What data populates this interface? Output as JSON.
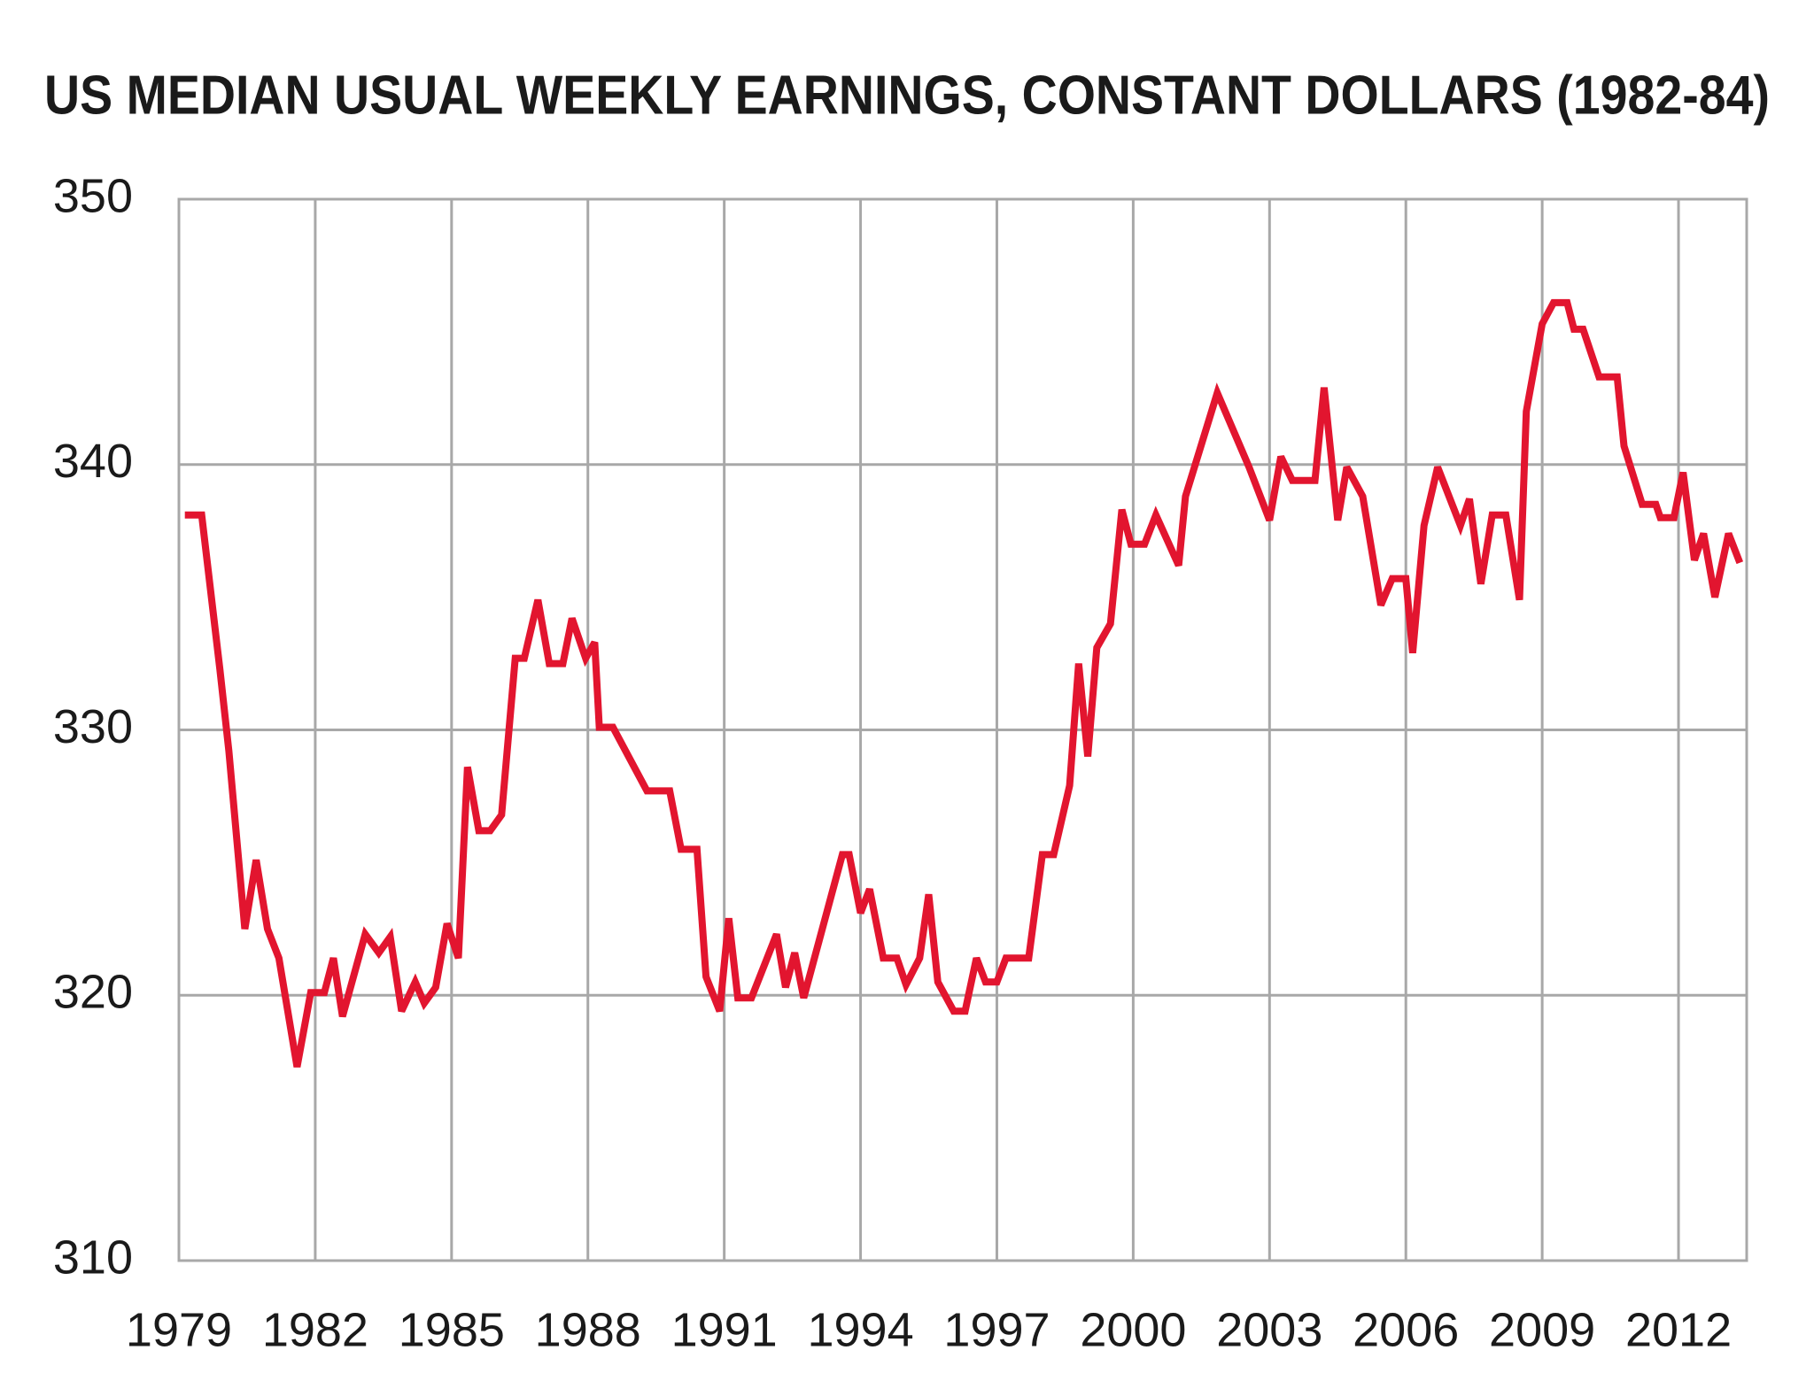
{
  "chart_data": {
    "type": "line",
    "title": "US MEDIAN USUAL WEEKLY EARNINGS, CONSTANT DOLLARS (1982-84)",
    "color": "#e2152f",
    "grid": true,
    "xlim": [
      1979,
      2013.5
    ],
    "ylim": [
      310,
      350
    ],
    "xticks": [
      1979,
      1982,
      1985,
      1988,
      1991,
      1994,
      1997,
      2000,
      2003,
      2006,
      2009,
      2012
    ],
    "yticks": [
      310,
      320,
      330,
      340,
      350
    ],
    "x": [
      1979.13,
      1979.5,
      1979.9,
      1980.1,
      1980.45,
      1980.7,
      1980.95,
      1981.2,
      1981.6,
      1981.9,
      1982.2,
      1982.4,
      1982.6,
      1983.1,
      1983.4,
      1983.65,
      1983.9,
      1984.2,
      1984.4,
      1984.65,
      1984.9,
      1985.15,
      1985.35,
      1985.6,
      1985.85,
      1986.1,
      1986.4,
      1986.6,
      1986.9,
      1987.15,
      1987.45,
      1987.65,
      1987.95,
      1988.15,
      1988.25,
      1988.55,
      1989.3,
      1989.8,
      1990.05,
      1990.4,
      1990.6,
      1990.9,
      1991.1,
      1991.3,
      1991.6,
      1992.15,
      1992.35,
      1992.55,
      1992.75,
      1993.6,
      1993.75,
      1994.0,
      1994.2,
      1994.5,
      1994.8,
      1995.0,
      1995.3,
      1995.5,
      1995.7,
      1996.05,
      1996.3,
      1996.55,
      1996.75,
      1997.0,
      1997.2,
      1997.7,
      1998.0,
      1998.25,
      1998.6,
      1998.8,
      1999.0,
      1999.2,
      1999.5,
      1999.75,
      1999.95,
      2000.25,
      2000.5,
      2001.0,
      2001.15,
      2001.85,
      2002.55,
      2003.0,
      2003.25,
      2003.5,
      2004.0,
      2004.2,
      2004.5,
      2004.7,
      2005.05,
      2005.45,
      2005.7,
      2006.0,
      2006.15,
      2006.4,
      2006.7,
      2007.2,
      2007.4,
      2007.65,
      2007.9,
      2008.2,
      2008.5,
      2008.65,
      2009.0,
      2009.25,
      2009.55,
      2009.7,
      2009.9,
      2010.25,
      2010.65,
      2010.8,
      2011.2,
      2011.5,
      2011.6,
      2011.9,
      2012.1,
      2012.35,
      2012.55,
      2012.8,
      2013.1,
      2013.35
    ],
    "values": [
      338.1,
      338.1,
      332.3,
      329.2,
      322.5,
      325.1,
      322.5,
      321.4,
      317.3,
      320.1,
      320.1,
      321.4,
      319.2,
      322.3,
      321.6,
      322.2,
      319.4,
      320.5,
      319.7,
      320.3,
      322.7,
      321.4,
      328.6,
      326.2,
      326.2,
      326.8,
      332.7,
      332.7,
      334.9,
      332.5,
      332.5,
      334.2,
      332.7,
      333.3,
      330.1,
      330.1,
      327.7,
      327.7,
      325.5,
      325.5,
      320.7,
      319.4,
      322.9,
      319.9,
      319.9,
      322.3,
      320.3,
      321.6,
      319.9,
      325.3,
      325.3,
      323.1,
      324.0,
      321.4,
      321.4,
      320.4,
      321.4,
      323.8,
      320.5,
      319.4,
      319.4,
      321.4,
      320.5,
      320.5,
      321.4,
      321.4,
      325.3,
      325.3,
      327.9,
      332.5,
      329.0,
      333.1,
      334.0,
      338.3,
      337.0,
      337.0,
      338.1,
      336.2,
      338.8,
      342.7,
      339.9,
      337.9,
      340.3,
      339.4,
      339.4,
      342.9,
      337.9,
      339.9,
      338.8,
      334.7,
      335.7,
      335.7,
      332.9,
      337.7,
      339.9,
      337.7,
      338.7,
      335.5,
      338.1,
      338.1,
      334.9,
      342.0,
      345.3,
      346.1,
      346.1,
      345.1,
      345.1,
      343.3,
      343.3,
      340.7,
      338.5,
      338.5,
      338.0,
      338.0,
      339.7,
      336.4,
      337.4,
      335.0,
      337.4,
      336.3
    ]
  }
}
